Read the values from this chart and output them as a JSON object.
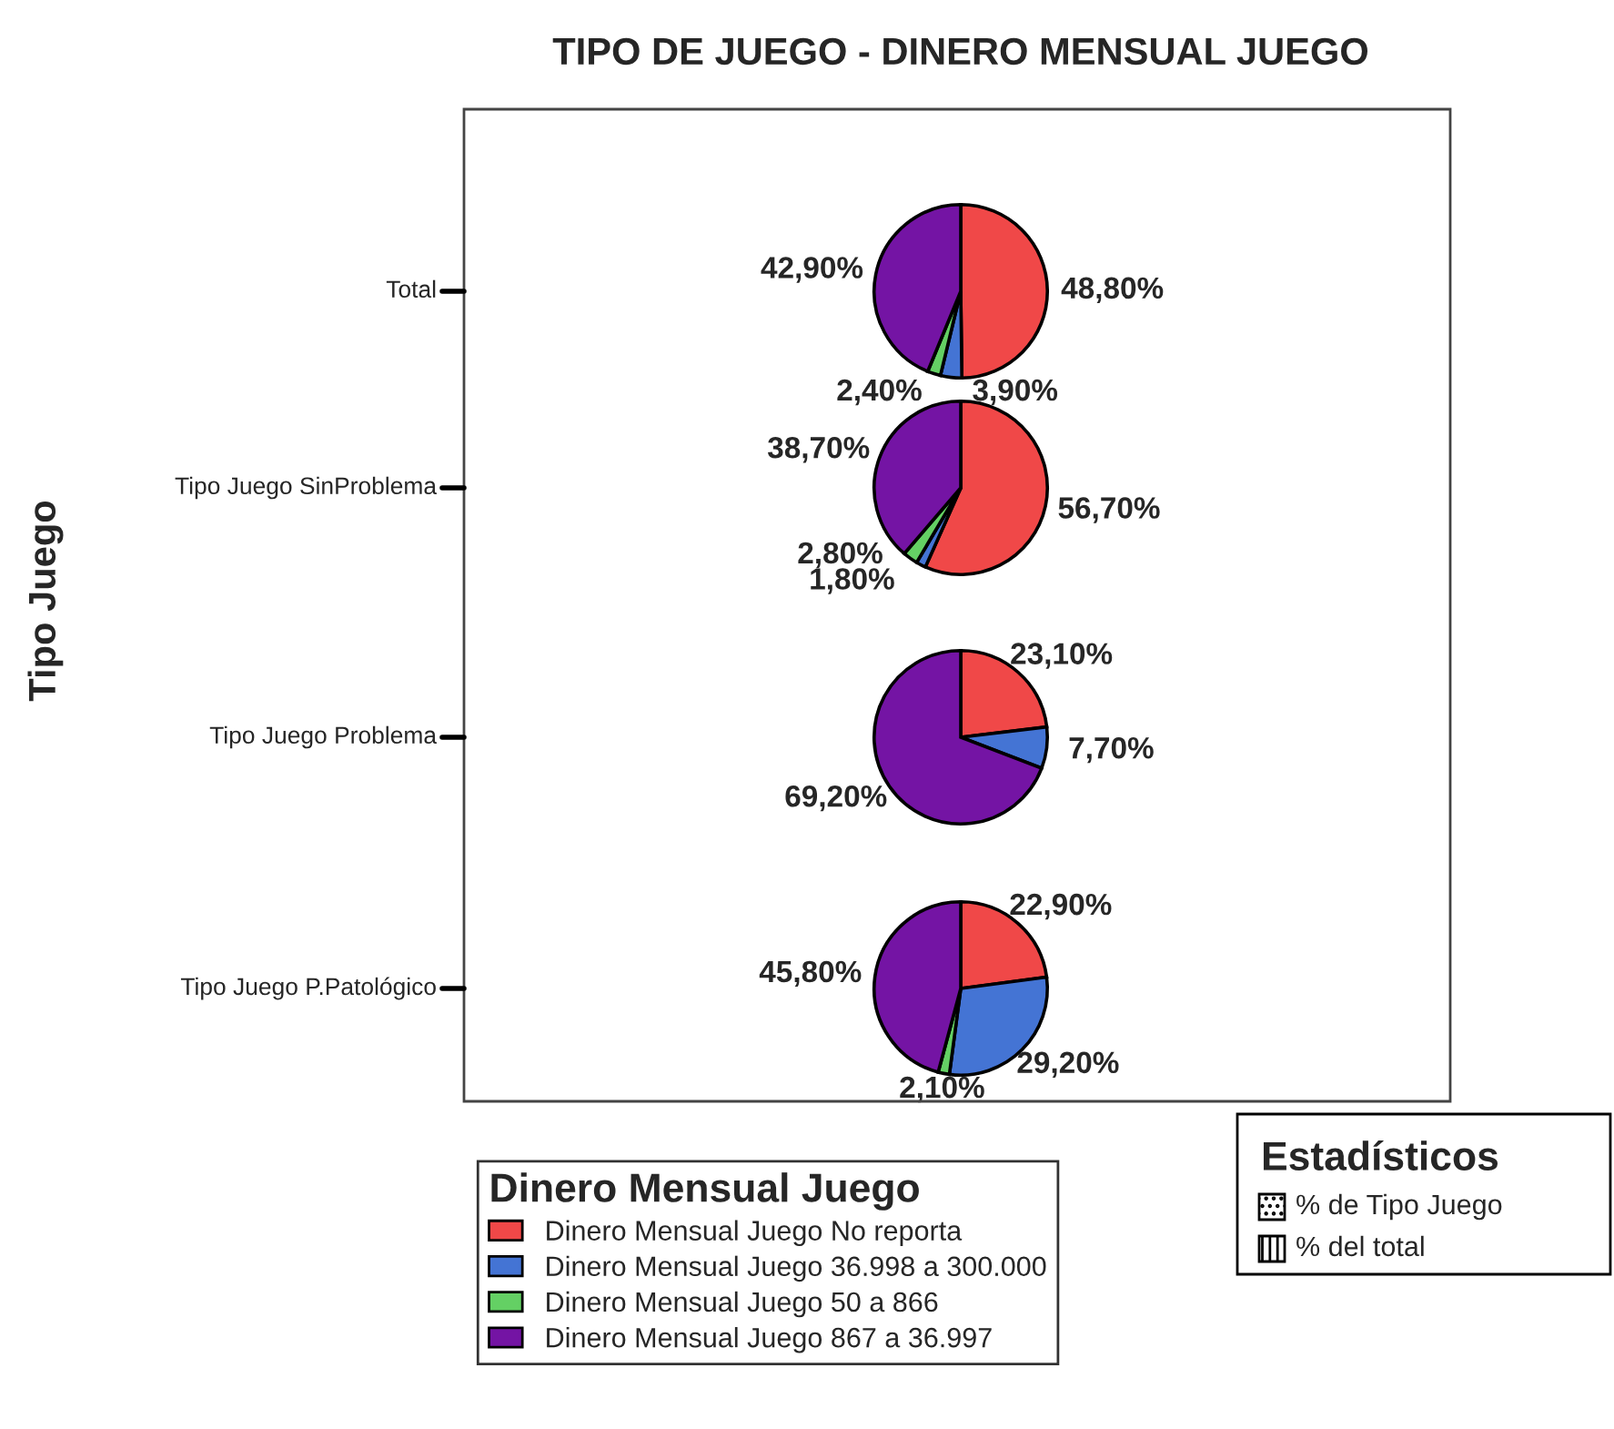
{
  "chart_data": [
    {
      "type": "pie",
      "title": "TIPO DE JUEGO - DINERO MENSUAL JUEGO",
      "ylabel": "Total",
      "legend": "bottom",
      "legend_title": "Dinero Mensual Juego",
      "categories": [
        "Dinero Mensual Juego No reporta",
        "Dinero Mensual Juego 36.998 a 300.000",
        "Dinero Mensual Juego 50 a 866",
        "Dinero Mensual Juego 867 a 36.997"
      ],
      "colors": [
        "#f04848",
        "#4474d4",
        "#64d064",
        "#7414a4"
      ],
      "values": [
        48.8,
        3.9,
        2.4,
        42.9
      ],
      "value_labels": [
        "48,80%",
        "3,90%",
        "2,40%",
        "42,90%"
      ],
      "annotations": [
        "Tipo Juego",
        "Estadísticos",
        "% de Tipo Juego",
        "% del total"
      ]
    },
    {
      "type": "pie",
      "ylabel": "Tipo Juego SinProblema",
      "colors": [
        "#f04848",
        "#4474d4",
        "#64d064",
        "#7414a4"
      ],
      "values": [
        56.7,
        1.8,
        2.8,
        38.7
      ],
      "value_labels": [
        "56,70%",
        "1,80%",
        "2,80%",
        "38,70%"
      ]
    },
    {
      "type": "pie",
      "ylabel": "Tipo Juego Problema",
      "colors": [
        "#f04848",
        "#4474d4",
        "#64d064",
        "#7414a4"
      ],
      "values": [
        23.1,
        7.7,
        null,
        69.2
      ],
      "value_labels": [
        "23,10%",
        "7,70%",
        null,
        "69,20%"
      ]
    },
    {
      "type": "pie",
      "ylabel": "Tipo Juego P.Patológico",
      "colors": [
        "#f04848",
        "#4474d4",
        "#64d064",
        "#7414a4"
      ],
      "values": [
        22.9,
        29.2,
        2.1,
        45.8
      ],
      "value_labels": [
        "22,90%",
        "29,20%",
        "2,10%",
        "45,80%"
      ]
    }
  ]
}
